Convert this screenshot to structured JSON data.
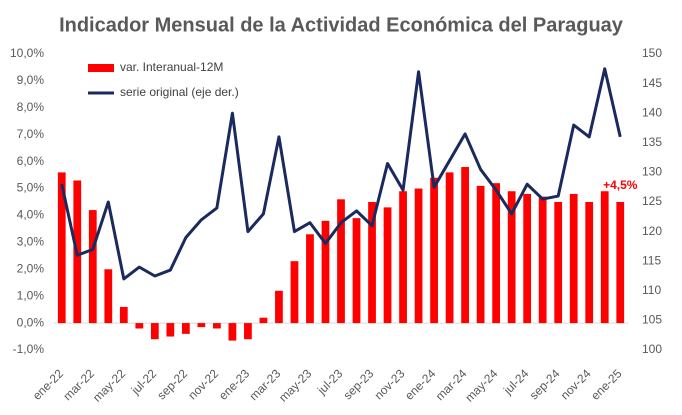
{
  "chart_data": {
    "type": "bar_line",
    "title": "Indicador Mensual de la Actividad Económica del Paraguay",
    "categories": [
      "ene-22",
      null,
      "mar-22",
      null,
      "may-22",
      null,
      "jul-22",
      null,
      "sep-22",
      null,
      "nov-22",
      null,
      "ene-23",
      null,
      "mar-23",
      null,
      "may-23",
      null,
      "jul-23",
      null,
      "sep-23",
      null,
      "nov-23",
      null,
      "ene-24",
      null,
      "mar-24",
      null,
      "may-24",
      null,
      "jul-24",
      null,
      "sep-24",
      null,
      "nov-24",
      null,
      "ene-25"
    ],
    "series": [
      {
        "name": "var. Interanual-12M",
        "color": "#ff0000",
        "type": "bar",
        "axis": "y",
        "values": [
          5.6,
          5.3,
          4.2,
          2.0,
          0.6,
          -0.2,
          -0.6,
          -0.5,
          -0.4,
          -0.15,
          -0.2,
          -0.65,
          -0.6,
          0.2,
          1.2,
          2.3,
          3.3,
          3.8,
          4.6,
          3.9,
          4.5,
          4.3,
          4.9,
          5.0,
          5.4,
          5.6,
          5.8,
          5.1,
          5.2,
          4.9,
          4.8,
          4.7,
          4.5,
          4.8,
          4.5,
          4.9,
          4.5
        ],
        "value_labels": [
          null,
          null,
          null,
          null,
          null,
          null,
          null,
          null,
          null,
          null,
          null,
          null,
          null,
          null,
          null,
          null,
          null,
          null,
          null,
          null,
          null,
          null,
          null,
          null,
          null,
          null,
          null,
          null,
          null,
          null,
          null,
          null,
          null,
          null,
          null,
          null,
          "+4,5%"
        ]
      },
      {
        "name": "serie original (eje der.)",
        "color": "#1b2a5e",
        "type": "line",
        "axis": "y2",
        "values": [
          128,
          116,
          117,
          125,
          112,
          114,
          112.5,
          113.5,
          119,
          122,
          124,
          140,
          120,
          123,
          136,
          120,
          121.5,
          118,
          121.5,
          123.5,
          121,
          131.5,
          127,
          147,
          127.5,
          132,
          136.5,
          130.5,
          127,
          123,
          128,
          125.5,
          126,
          138,
          136,
          147.5,
          136
        ]
      }
    ],
    "ylim": [
      -1,
      10
    ],
    "yticks": [
      {
        "value": -1,
        "label": "-1,0%"
      },
      {
        "value": 0,
        "label": "0,0%"
      },
      {
        "value": 1,
        "label": "1,0%"
      },
      {
        "value": 2,
        "label": "2,0%"
      },
      {
        "value": 3,
        "label": "3,0%"
      },
      {
        "value": 4,
        "label": "4,0%"
      },
      {
        "value": 5,
        "label": "5,0%"
      },
      {
        "value": 6,
        "label": "6,0%"
      },
      {
        "value": 7,
        "label": "7,0%"
      },
      {
        "value": 8,
        "label": "8,0%"
      },
      {
        "value": 9,
        "label": "9,0%"
      },
      {
        "value": 10,
        "label": "10,0%"
      }
    ],
    "y2lim": [
      100,
      150
    ],
    "y2ticks": [
      100,
      105,
      110,
      115,
      120,
      125,
      130,
      135,
      140,
      145,
      150
    ],
    "legend": "upper left",
    "grid": false
  }
}
